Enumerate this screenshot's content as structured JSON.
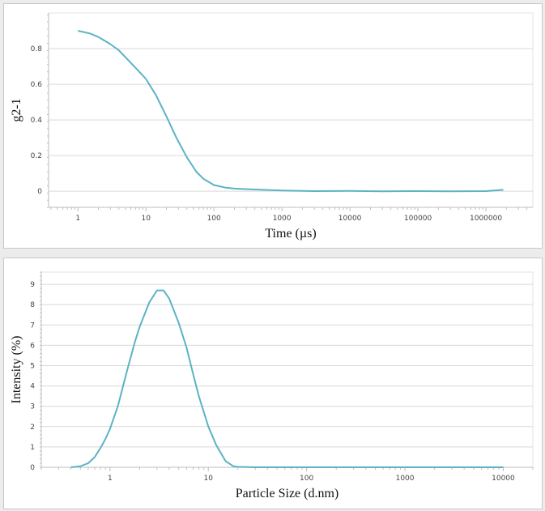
{
  "colors": {
    "series": "#5bb3c4",
    "grid": "#d9d9d9",
    "axis": "#bdbdbd"
  },
  "chart_data": [
    {
      "type": "line",
      "xlabel": "Time (µs)",
      "ylabel": "g2-1",
      "xscale": "log",
      "xlim": [
        0.37,
        4900000
      ],
      "ylim": [
        -0.09,
        1.0
      ],
      "xticks": [
        "1",
        "10",
        "100",
        "1000",
        "10000",
        "100000",
        "1000000"
      ],
      "yticks": [
        "0",
        "0.2",
        "0.4",
        "0.6",
        "0.8"
      ],
      "grid": "horizontal",
      "x": [
        1,
        1.5,
        2,
        3,
        4,
        6,
        8,
        10,
        14,
        20,
        28,
        40,
        55,
        70,
        100,
        150,
        200,
        400,
        1000,
        3000,
        10000,
        30000,
        100000,
        300000,
        1000000,
        1800000
      ],
      "y": [
        0.9,
        0.885,
        0.865,
        0.825,
        0.79,
        0.72,
        0.67,
        0.63,
        0.54,
        0.42,
        0.3,
        0.19,
        0.11,
        0.07,
        0.035,
        0.02,
        0.015,
        0.01,
        0.004,
        0.001,
        0.002,
        0.0,
        0.001,
        0.0,
        0.001,
        0.008
      ]
    },
    {
      "type": "line",
      "xlabel": "Particle Size (d.nm)",
      "ylabel": "Intensity (%)",
      "xscale": "log",
      "xlim": [
        0.2,
        20000
      ],
      "ylim": [
        0,
        9.6
      ],
      "xticks": [
        "1",
        "10",
        "100",
        "1000",
        "10000"
      ],
      "yticks": [
        "0",
        "1",
        "2",
        "3",
        "4",
        "5",
        "6",
        "7",
        "8",
        "9"
      ],
      "grid": "horizontal",
      "x": [
        0.4,
        0.5,
        0.6,
        0.7,
        0.8,
        0.9,
        1.0,
        1.2,
        1.5,
        1.8,
        2.0,
        2.5,
        3.0,
        3.5,
        4.0,
        5.0,
        6.0,
        7.0,
        8.0,
        10,
        12,
        15,
        18,
        20,
        30,
        100,
        1000,
        10000
      ],
      "y": [
        0.0,
        0.05,
        0.2,
        0.5,
        0.95,
        1.4,
        1.9,
        3.0,
        4.8,
        6.2,
        6.9,
        8.1,
        8.7,
        8.7,
        8.3,
        7.1,
        5.9,
        4.6,
        3.5,
        2.0,
        1.1,
        0.3,
        0.05,
        0.02,
        0.0,
        0.0,
        0.0,
        0.0
      ]
    }
  ]
}
